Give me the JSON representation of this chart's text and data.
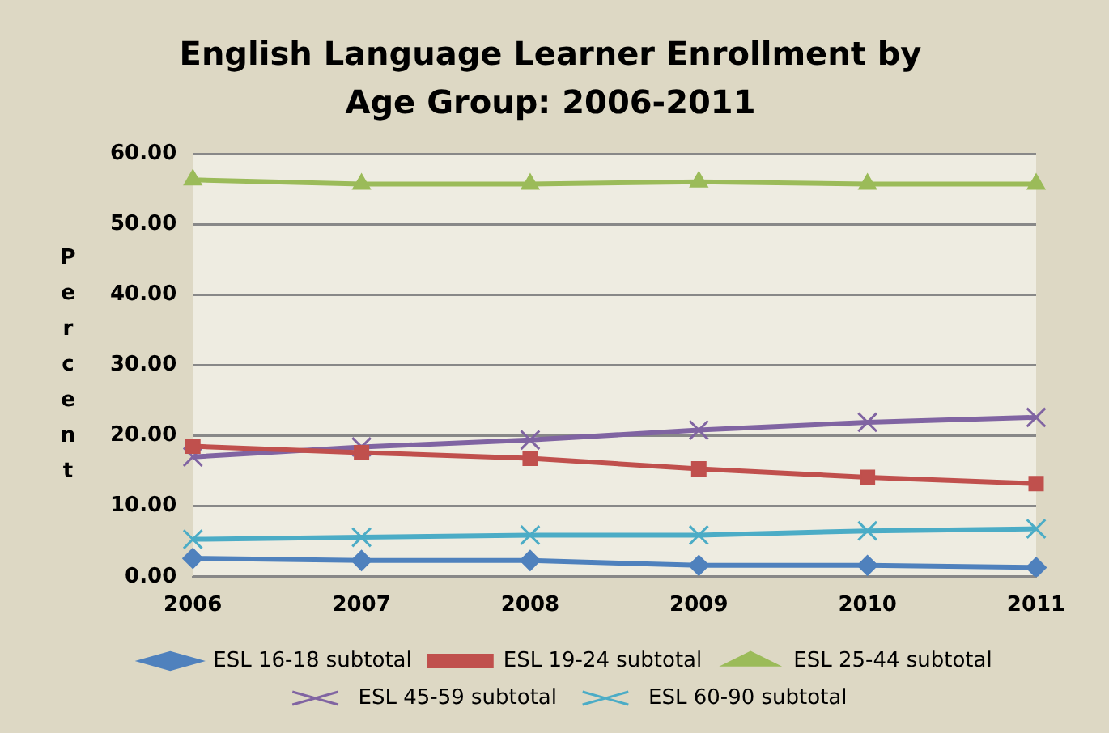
{
  "chart_data": {
    "type": "line",
    "title": "English Language Learner Enrollment by Age Group: 2006-2011",
    "ylabel": "Percent",
    "categories": [
      "2006",
      "2007",
      "2008",
      "2009",
      "2010",
      "2011"
    ],
    "series": [
      {
        "name": "ESL 16-18 subtotal",
        "color": "#4f81bd",
        "marker": "diamond",
        "values": [
          2.6,
          2.3,
          2.3,
          1.6,
          1.6,
          1.3
        ]
      },
      {
        "name": "ESL 19-24 subtotal",
        "color": "#c0504d",
        "marker": "square",
        "values": [
          18.5,
          17.6,
          16.8,
          15.3,
          14.1,
          13.2
        ]
      },
      {
        "name": "ESL 25-44 subtotal",
        "color": "#9bbb59",
        "marker": "triangle",
        "values": [
          56.3,
          55.7,
          55.7,
          56.0,
          55.7,
          55.7
        ]
      },
      {
        "name": "ESL 45-59 subtotal",
        "color": "#8064a2",
        "marker": "cross",
        "values": [
          17.0,
          18.4,
          19.4,
          20.8,
          21.9,
          22.6
        ]
      },
      {
        "name": "ESL 60-90 subtotal",
        "color": "#4bacc6",
        "marker": "cross",
        "values": [
          5.3,
          5.6,
          5.9,
          5.9,
          6.5,
          6.8
        ]
      }
    ],
    "ylim": [
      0,
      60
    ],
    "yticks": [
      {
        "value": 0,
        "label": "0.00"
      },
      {
        "value": 10,
        "label": "10.00"
      },
      {
        "value": 20,
        "label": "20.00"
      },
      {
        "value": 30,
        "label": "30.00"
      },
      {
        "value": 40,
        "label": "40.00"
      },
      {
        "value": 50,
        "label": "50.00"
      },
      {
        "value": 60,
        "label": "60.00"
      }
    ],
    "grid": "y",
    "legend": "bottom"
  }
}
